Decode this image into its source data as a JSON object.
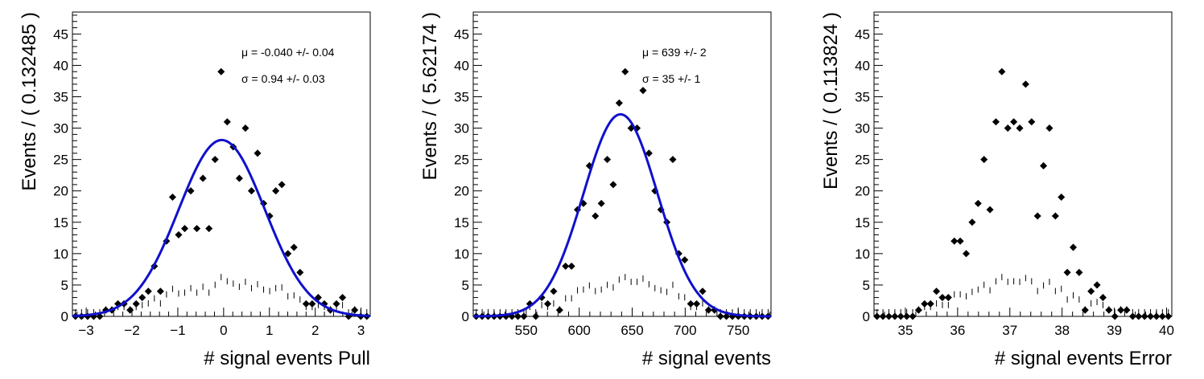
{
  "chart_data": [
    {
      "type": "scatter",
      "xlabel": "# signal events Pull",
      "ylabel": "Events / ( 0.132485 )",
      "xlim": [
        -3.3,
        3.2
      ],
      "ylim": [
        0,
        48.5
      ],
      "xticks": [
        -3,
        -2,
        -1,
        0,
        1,
        2,
        3
      ],
      "yticks": [
        0,
        5,
        10,
        15,
        20,
        25,
        30,
        35,
        40,
        45
      ],
      "xtick_labels": [
        "−3",
        "−2",
        "−1",
        "0",
        "1",
        "2",
        "3"
      ],
      "ytick_labels": [
        "0",
        "5",
        "10",
        "15",
        "20",
        "25",
        "30",
        "35",
        "40",
        "45"
      ],
      "stats": [
        "μ = -0.040 +/- 0.04",
        "σ =  0.94 +/- 0.03"
      ],
      "bin_start": -3.3,
      "bin_width": 0.132485,
      "counts": [
        0,
        0,
        0,
        0,
        0,
        1,
        1,
        2,
        2,
        1,
        2,
        3,
        4,
        8,
        4,
        12,
        19,
        13,
        14,
        20,
        14,
        22,
        14,
        25,
        39,
        31,
        27,
        22,
        30,
        20,
        26,
        18,
        16,
        20,
        21,
        10,
        11,
        7,
        2,
        2,
        3,
        2,
        1,
        2,
        3,
        0,
        1,
        0,
        0,
        0
      ],
      "fit": {
        "mu": -0.04,
        "sigma": 0.94,
        "amplitude": 28.1,
        "color": "#1010cc"
      }
    },
    {
      "type": "scatter",
      "xlabel": "# signal events",
      "ylabel": "Events / ( 5.62174 )",
      "xlim": [
        500,
        781
      ],
      "ylim": [
        0,
        48.5
      ],
      "xticks": [
        550,
        600,
        650,
        700,
        750
      ],
      "yticks": [
        0,
        5,
        10,
        15,
        20,
        25,
        30,
        35,
        40,
        45
      ],
      "xtick_labels": [
        "550",
        "600",
        "650",
        "700",
        "750"
      ],
      "ytick_labels": [
        "0",
        "5",
        "10",
        "15",
        "20",
        "25",
        "30",
        "35",
        "40",
        "45"
      ],
      "stats": [
        "μ =  639 +/- 2",
        "σ =  35 +/- 1"
      ],
      "bin_start": 500,
      "bin_width": 5.62174,
      "counts": [
        0,
        0,
        0,
        0,
        0,
        0,
        0,
        0,
        0,
        2,
        0,
        3,
        2,
        4,
        1,
        8,
        8,
        17,
        18,
        24,
        16,
        18,
        25,
        21,
        34,
        39,
        30,
        30,
        36,
        26,
        20,
        17,
        15,
        25,
        10,
        9,
        2,
        2,
        4,
        1,
        1,
        0,
        0,
        0,
        0,
        0,
        0,
        0,
        0,
        0
      ],
      "fit": {
        "mu": 639,
        "sigma": 35,
        "amplitude": 32.2,
        "color": "#1010cc"
      }
    },
    {
      "type": "scatter",
      "xlabel": "# signal events Error",
      "ylabel": "Events / ( 0.113824 )",
      "xlim": [
        34.4,
        40.1
      ],
      "ylim": [
        0,
        48.5
      ],
      "xticks": [
        35,
        36,
        37,
        38,
        39,
        40
      ],
      "yticks": [
        0,
        5,
        10,
        15,
        20,
        25,
        30,
        35,
        40,
        45
      ],
      "xtick_labels": [
        "35",
        "36",
        "37",
        "38",
        "39",
        "40"
      ],
      "ytick_labels": [
        "0",
        "5",
        "10",
        "15",
        "20",
        "25",
        "30",
        "35",
        "40",
        "45"
      ],
      "stats": [],
      "bin_start": 34.4,
      "bin_width": 0.113824,
      "counts": [
        0,
        0,
        0,
        0,
        0,
        0,
        0,
        1,
        2,
        2,
        4,
        3,
        3,
        12,
        12,
        10,
        15,
        18,
        25,
        17,
        31,
        39,
        30,
        31,
        30,
        37,
        31,
        16,
        24,
        30,
        16,
        19,
        7,
        11,
        7,
        1,
        4,
        5,
        3,
        1,
        0,
        1,
        1,
        0,
        0,
        0,
        0,
        0,
        0,
        0
      ],
      "fit": null
    }
  ]
}
